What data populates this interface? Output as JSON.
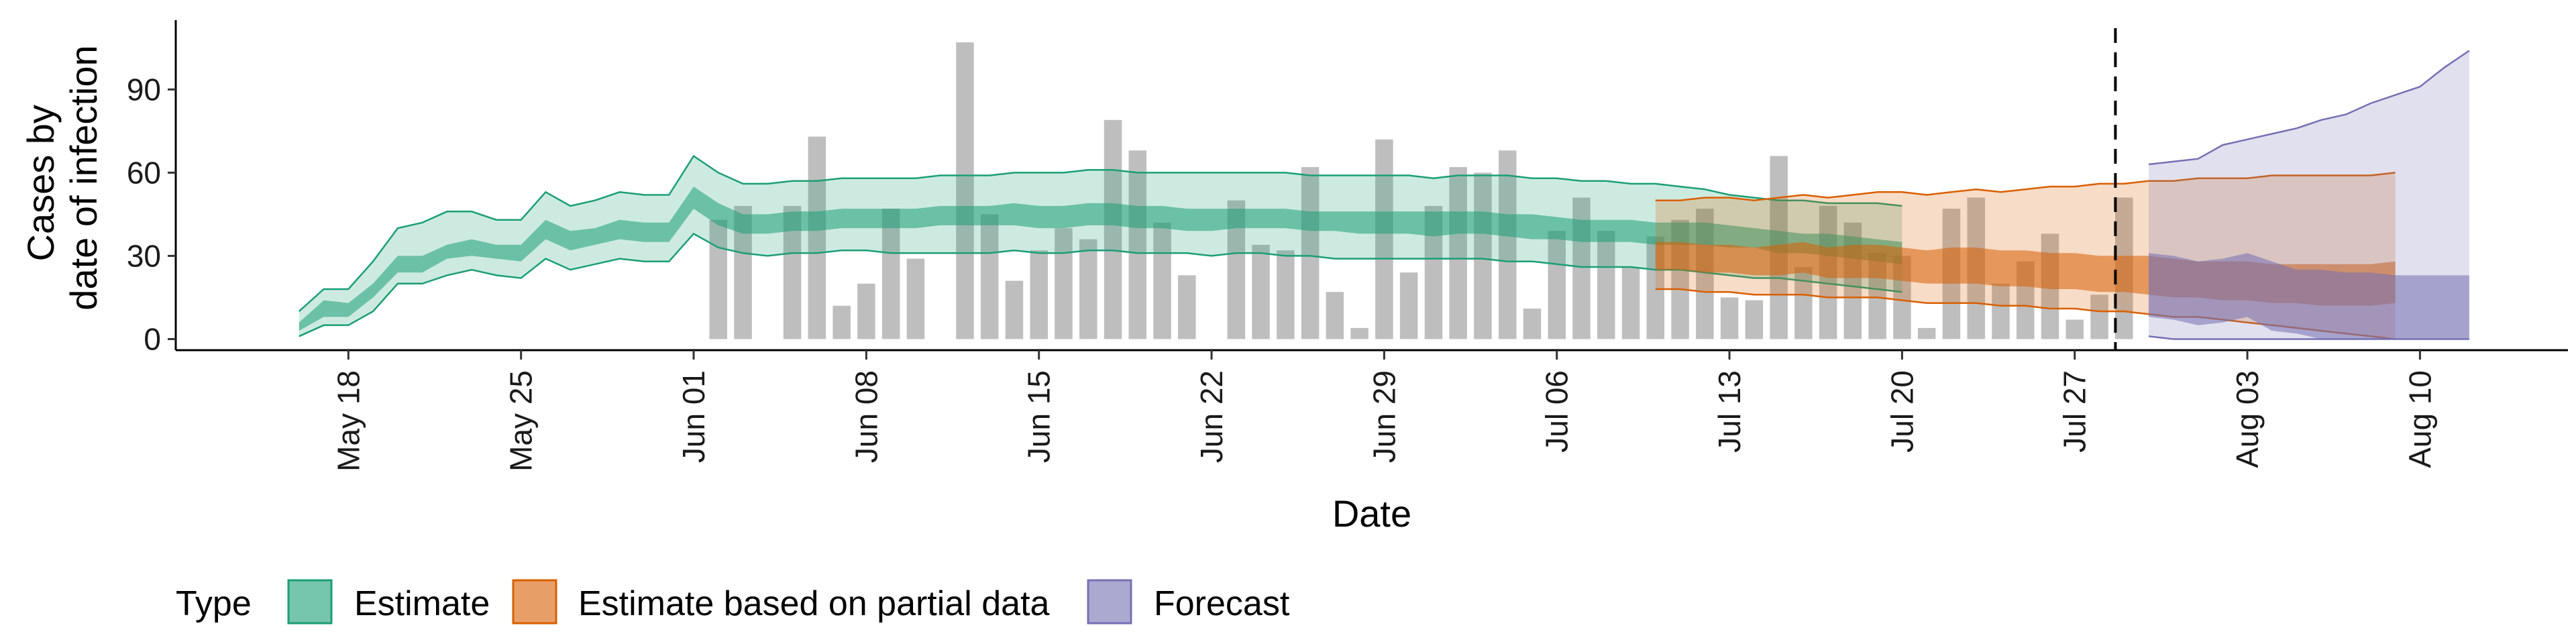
{
  "chart_data": {
    "type": "area",
    "title": "",
    "xlabel": "Date",
    "ylabel": [
      "Cases by",
      "date of infection"
    ],
    "ylim": [
      -4,
      115
    ],
    "xlim": [
      "2020-05-11",
      "2020-08-16"
    ],
    "y_ticks": [
      0,
      30,
      60,
      90
    ],
    "x_ticks": [
      {
        "date": "2020-05-18",
        "label": "May 18"
      },
      {
        "date": "2020-05-25",
        "label": "May 25"
      },
      {
        "date": "2020-06-01",
        "label": "Jun 01"
      },
      {
        "date": "2020-06-08",
        "label": "Jun 08"
      },
      {
        "date": "2020-06-15",
        "label": "Jun 15"
      },
      {
        "date": "2020-06-22",
        "label": "Jun 22"
      },
      {
        "date": "2020-06-29",
        "label": "Jun 29"
      },
      {
        "date": "2020-07-06",
        "label": "Jul 06"
      },
      {
        "date": "2020-07-13",
        "label": "Jul 13"
      },
      {
        "date": "2020-07-20",
        "label": "Jul 20"
      },
      {
        "date": "2020-07-27",
        "label": "Jul 27"
      },
      {
        "date": "2020-08-03",
        "label": "Aug 03"
      },
      {
        "date": "2020-08-10",
        "label": "Aug 10"
      }
    ],
    "vline": {
      "date": "2020-07-29",
      "style": "dashed"
    },
    "bars": {
      "start_date": "2020-06-02",
      "values": [
        43,
        48,
        0,
        48,
        73,
        12,
        20,
        47,
        29,
        0,
        107,
        45,
        21,
        32,
        40,
        36,
        79,
        68,
        42,
        23,
        0,
        50,
        34,
        32,
        62,
        17,
        4,
        72,
        24,
        48,
        62,
        60,
        68,
        11,
        39,
        51,
        39,
        26,
        37,
        43,
        47,
        15,
        14,
        66,
        26,
        48,
        42,
        31,
        30,
        4,
        47,
        51,
        20,
        28,
        38,
        7,
        16,
        51
      ]
    },
    "series": [
      {
        "name": "Estimate",
        "color": "#1b9e77",
        "start_date": "2020-05-16",
        "outer_upper": [
          10,
          18,
          18,
          28,
          40,
          42,
          46,
          46,
          43,
          43,
          53,
          48,
          50,
          53,
          52,
          52,
          66,
          60,
          56,
          56,
          57,
          57,
          58,
          58,
          58,
          58,
          59,
          59,
          59,
          60,
          60,
          60,
          61,
          61,
          60,
          60,
          60,
          60,
          60,
          60,
          60,
          59,
          59,
          59,
          59,
          59,
          58,
          59,
          59,
          59,
          58,
          58,
          57,
          57,
          56,
          56,
          55,
          54,
          52,
          51,
          50,
          50,
          49,
          49,
          49,
          48
        ],
        "inner_upper": [
          6,
          14,
          13,
          20,
          30,
          30,
          34,
          36,
          34,
          34,
          43,
          39,
          40,
          43,
          42,
          42,
          55,
          49,
          45,
          45,
          46,
          46,
          47,
          47,
          47,
          47,
          48,
          48,
          48,
          49,
          48,
          48,
          49,
          49,
          48,
          48,
          47,
          47,
          47,
          47,
          47,
          46,
          46,
          46,
          46,
          46,
          46,
          46,
          46,
          45,
          45,
          44,
          43,
          43,
          43,
          42,
          42,
          42,
          41,
          40,
          39,
          38,
          38,
          37,
          36,
          35
        ],
        "inner_lower": [
          3,
          8,
          8,
          15,
          24,
          24,
          29,
          30,
          29,
          28,
          36,
          32,
          34,
          36,
          35,
          35,
          47,
          41,
          38,
          38,
          39,
          39,
          40,
          40,
          40,
          40,
          41,
          41,
          41,
          41,
          40,
          40,
          41,
          41,
          40,
          40,
          39,
          39,
          40,
          40,
          40,
          39,
          39,
          38,
          38,
          38,
          37,
          38,
          38,
          37,
          36,
          36,
          35,
          35,
          35,
          34,
          34,
          34,
          33,
          33,
          31,
          31,
          30,
          29,
          28,
          27
        ],
        "outer_lower": [
          1,
          5,
          5,
          10,
          20,
          20,
          23,
          25,
          23,
          22,
          29,
          25,
          27,
          29,
          28,
          28,
          38,
          33,
          31,
          30,
          31,
          31,
          32,
          32,
          31,
          31,
          31,
          31,
          31,
          32,
          31,
          31,
          32,
          32,
          31,
          31,
          31,
          30,
          31,
          31,
          30,
          30,
          29,
          29,
          29,
          29,
          29,
          29,
          29,
          28,
          28,
          27,
          26,
          26,
          26,
          25,
          25,
          24,
          23,
          22,
          22,
          21,
          20,
          19,
          18,
          17
        ]
      },
      {
        "name": "Estimate based on partial data",
        "color": "#d95f02",
        "start_date": "2020-07-10",
        "outer_upper": [
          50,
          50,
          51,
          51,
          50,
          51,
          52,
          51,
          52,
          53,
          53,
          52,
          53,
          54,
          53,
          54,
          55,
          55,
          56,
          56,
          57,
          57,
          58,
          58,
          58,
          59,
          59,
          59,
          59,
          59,
          60
        ],
        "inner_upper": [
          35,
          35,
          34,
          34,
          33,
          34,
          35,
          33,
          34,
          34,
          33,
          32,
          33,
          33,
          32,
          32,
          31,
          31,
          30,
          30,
          30,
          29,
          28,
          28,
          28,
          27,
          27,
          27,
          27,
          27,
          28
        ],
        "inner_lower": [
          25,
          25,
          24,
          24,
          23,
          23,
          24,
          22,
          22,
          22,
          21,
          20,
          20,
          20,
          19,
          19,
          18,
          18,
          17,
          17,
          16,
          15,
          15,
          14,
          14,
          13,
          13,
          12,
          12,
          12,
          13
        ],
        "outer_lower": [
          18,
          18,
          17,
          17,
          16,
          16,
          16,
          15,
          15,
          15,
          14,
          13,
          13,
          13,
          12,
          12,
          11,
          11,
          10,
          10,
          9,
          8,
          8,
          7,
          6,
          5,
          4,
          3,
          2,
          1,
          0
        ]
      },
      {
        "name": "Forecast",
        "color": "#7570b3",
        "start_date": "2020-07-30",
        "outer_upper": [
          63,
          64,
          65,
          70,
          72,
          74,
          76,
          79,
          81,
          85,
          88,
          91,
          98,
          104
        ],
        "inner_upper": [
          31,
          30,
          28,
          29,
          31,
          28,
          25,
          25,
          24,
          24,
          23,
          23,
          23,
          23
        ],
        "inner_lower": [
          8,
          7,
          5,
          6,
          8,
          3,
          2,
          0,
          0,
          0,
          0,
          0,
          0,
          0
        ],
        "outer_lower": [
          1,
          0,
          0,
          0,
          0,
          0,
          0,
          0,
          0,
          0,
          0,
          0,
          0,
          0
        ]
      }
    ],
    "legend": {
      "title": "Type",
      "position": "bottom",
      "entries": [
        "Estimate",
        "Estimate based on partial data",
        "Forecast"
      ]
    }
  }
}
